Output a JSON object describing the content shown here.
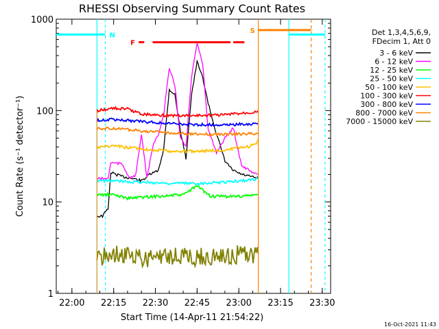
{
  "chart_data": {
    "type": "line",
    "title": "RHESSI Observing Summary Count Rates",
    "xlabel": "Start Time (14-Apr-11 21:54:22)",
    "ylabel": "Count Rate (s⁻¹ detector⁻¹)",
    "yscale": "log",
    "ylim": [
      1,
      1000
    ],
    "xlim": [
      "21:54:22",
      "23:33:00"
    ],
    "x_ticks": [
      "22:00",
      "22:15",
      "22:30",
      "22:45",
      "23:00",
      "23:15",
      "23:30"
    ],
    "y_ticks": [
      "1",
      "10",
      "100",
      "1000"
    ],
    "timestamp": "16-Oct-2021 11:43",
    "legend_header": [
      "Det 1,3,4,5,6,9,",
      "FDecim 1, Att 0"
    ],
    "legend_position": "right",
    "series": [
      {
        "name": "3 - 6 keV",
        "color": "#000000",
        "points": [
          [
            "22:09",
            7
          ],
          [
            "22:11",
            7
          ],
          [
            "22:13",
            8.5
          ],
          [
            "22:14",
            21
          ],
          [
            "22:18",
            19
          ],
          [
            "22:22",
            18
          ],
          [
            "22:25",
            17
          ],
          [
            "22:28",
            20
          ],
          [
            "22:31",
            22
          ],
          [
            "22:33",
            38
          ],
          [
            "22:35",
            170
          ],
          [
            "22:37",
            150
          ],
          [
            "22:39",
            60
          ],
          [
            "22:41",
            30
          ],
          [
            "22:43",
            150
          ],
          [
            "22:45",
            340
          ],
          [
            "22:47",
            230
          ],
          [
            "22:49",
            120
          ],
          [
            "22:52",
            55
          ],
          [
            "22:55",
            28
          ],
          [
            "22:58",
            22
          ],
          [
            "23:01",
            20
          ],
          [
            "23:04",
            19
          ],
          [
            "23:07",
            18
          ]
        ]
      },
      {
        "name": "6 - 12 keV",
        "color": "#ff00ff",
        "points": [
          [
            "22:09",
            18
          ],
          [
            "22:13",
            18
          ],
          [
            "22:14",
            27
          ],
          [
            "22:18",
            26
          ],
          [
            "22:21",
            18
          ],
          [
            "22:23",
            20
          ],
          [
            "22:25",
            55
          ],
          [
            "22:27",
            18
          ],
          [
            "22:29",
            40
          ],
          [
            "22:31",
            55
          ],
          [
            "22:33",
            90
          ],
          [
            "22:35",
            290
          ],
          [
            "22:37",
            190
          ],
          [
            "22:39",
            50
          ],
          [
            "22:41",
            40
          ],
          [
            "22:43",
            230
          ],
          [
            "22:45",
            560
          ],
          [
            "22:47",
            330
          ],
          [
            "22:49",
            60
          ],
          [
            "22:52",
            35
          ],
          [
            "22:55",
            50
          ],
          [
            "22:58",
            65
          ],
          [
            "23:01",
            25
          ],
          [
            "23:04",
            22
          ],
          [
            "23:07",
            20
          ]
        ]
      },
      {
        "name": "12 - 25 keV",
        "color": "#00ff00",
        "points": [
          [
            "22:09",
            12
          ],
          [
            "22:15",
            12
          ],
          [
            "22:20",
            11
          ],
          [
            "22:30",
            11.5
          ],
          [
            "22:40",
            12
          ],
          [
            "22:45",
            15
          ],
          [
            "22:50",
            11.5
          ],
          [
            "23:00",
            11.5
          ],
          [
            "23:07",
            12
          ]
        ]
      },
      {
        "name": "25 - 50 keV",
        "color": "#00ffff",
        "points": [
          [
            "22:09",
            17
          ],
          [
            "22:15",
            17
          ],
          [
            "22:25",
            16.5
          ],
          [
            "22:35",
            16
          ],
          [
            "22:45",
            16
          ],
          [
            "22:55",
            16.5
          ],
          [
            "23:05",
            17.5
          ],
          [
            "23:07",
            18
          ]
        ]
      },
      {
        "name": "50 - 100 keV",
        "color": "#ffc000",
        "points": [
          [
            "22:09",
            40
          ],
          [
            "22:15",
            41
          ],
          [
            "22:25",
            38
          ],
          [
            "22:35",
            36
          ],
          [
            "22:45",
            36
          ],
          [
            "22:55",
            37
          ],
          [
            "23:03",
            40
          ],
          [
            "23:06",
            43
          ],
          [
            "23:07",
            48
          ]
        ]
      },
      {
        "name": "100 - 300 keV",
        "color": "#ff0000",
        "points": [
          [
            "22:09",
            100
          ],
          [
            "22:15",
            106
          ],
          [
            "22:20",
            104
          ],
          [
            "22:25",
            92
          ],
          [
            "22:35",
            88
          ],
          [
            "22:45",
            88
          ],
          [
            "22:55",
            90
          ],
          [
            "23:05",
            96
          ],
          [
            "23:07",
            100
          ]
        ]
      },
      {
        "name": "300 - 800 keV",
        "color": "#0000ff",
        "points": [
          [
            "22:09",
            78
          ],
          [
            "22:15",
            80
          ],
          [
            "22:25",
            76
          ],
          [
            "22:35",
            72
          ],
          [
            "22:45",
            70
          ],
          [
            "22:55",
            70
          ],
          [
            "23:07",
            72
          ]
        ]
      },
      {
        "name": "800 - 7000 keV",
        "color": "#ff8000",
        "points": [
          [
            "22:09",
            63
          ],
          [
            "22:15",
            64
          ],
          [
            "22:25",
            60
          ],
          [
            "22:35",
            57
          ],
          [
            "22:45",
            55
          ],
          [
            "22:55",
            55
          ],
          [
            "23:07",
            56
          ]
        ]
      },
      {
        "name": "7000 - 15000 keV",
        "color": "#808000",
        "points": [
          [
            "22:09",
            2.5
          ],
          [
            "22:15",
            2.7
          ],
          [
            "22:25",
            2.4
          ],
          [
            "22:35",
            2.6
          ],
          [
            "22:45",
            2.5
          ],
          [
            "22:55",
            2.6
          ],
          [
            "23:07",
            2.7
          ]
        ]
      }
    ],
    "flag_bars": [
      {
        "label": "N",
        "color": "#00ffff",
        "segments": [
          [
            "21:54:22",
            "22:12"
          ],
          [
            "23:18",
            "23:31"
          ]
        ],
        "level": 680
      },
      {
        "label": "S",
        "color": "#ff8000",
        "segments": [
          [
            "23:07",
            "23:26"
          ]
        ],
        "level": 760
      },
      {
        "label": "F",
        "color": "#ff0000",
        "segments": [
          [
            "22:24",
            "22:26"
          ],
          [
            "22:29",
            "22:57"
          ],
          [
            "22:58",
            "23:02"
          ]
        ],
        "level": 560
      }
    ]
  }
}
